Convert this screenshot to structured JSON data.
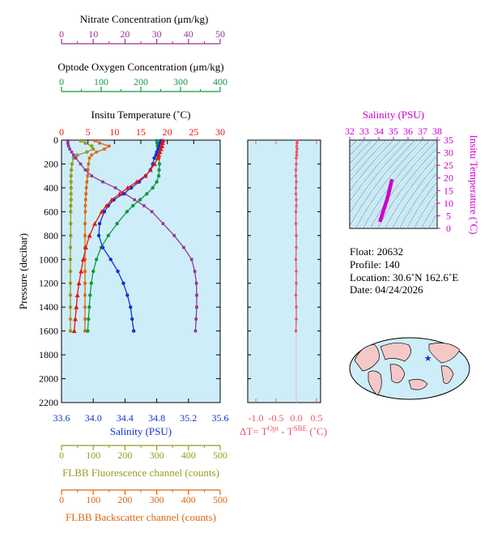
{
  "colors": {
    "nitrate": "#993399",
    "oxygen": "#119944",
    "temperature": "#ee1111",
    "salinity": "#1133cc",
    "fluorescence": "#999922",
    "backscatter": "#dd6611",
    "delta": "#ee5566",
    "ts": "#cc00cc",
    "panel_fill": "#cdeef8"
  },
  "axes": {
    "nitrate": {
      "title": "Nitrate Concentration (μm/kg)",
      "ticks": [
        "0",
        "10",
        "20",
        "30",
        "40",
        "50"
      ]
    },
    "oxygen": {
      "title": "Optode Oxygen Concentration (μm/kg)",
      "ticks": [
        "0",
        "100",
        "200",
        "300",
        "400"
      ]
    },
    "temperature": {
      "title": "Insitu Temperature (˚C)",
      "ticks": [
        "0",
        "5",
        "10",
        "15",
        "20",
        "25",
        "30"
      ]
    },
    "pressure": {
      "title": "Pressure (decibar)",
      "ticks": [
        "0",
        "200",
        "400",
        "600",
        "800",
        "1000",
        "1200",
        "1400",
        "1600",
        "1800",
        "2000",
        "2200"
      ]
    },
    "salinity": {
      "title": "Salinity (PSU)",
      "ticks": [
        "33.6",
        "34.0",
        "34.4",
        "34.8",
        "35.2",
        "35.6"
      ]
    },
    "delta": {
      "title_prefix": "ΔT= T",
      "sup1": "Opt",
      "mid": " - T",
      "sup2": "SBE",
      "suffix": " (˚C)",
      "ticks": [
        "-1.0",
        "-0.5",
        "0.0",
        "0.5"
      ]
    },
    "fluorescence": {
      "title": "FLBB Fluorescence channel (counts)",
      "ticks": [
        "0",
        "100",
        "200",
        "300",
        "400",
        "500"
      ]
    },
    "backscatter": {
      "title": "FLBB Backscatter channel (counts)",
      "ticks": [
        "0",
        "100",
        "200",
        "300",
        "400",
        "500"
      ]
    },
    "ts_salinity": {
      "title": "Salinity (PSU)",
      "ticks": [
        "32",
        "33",
        "34",
        "35",
        "36",
        "37",
        "38"
      ]
    },
    "ts_temperature": {
      "title": "Insitu Temperature (˚C)",
      "ticks": [
        "0",
        "5",
        "10",
        "15",
        "20",
        "25",
        "30",
        "35"
      ]
    }
  },
  "info": {
    "float": "Float:  20632",
    "profile": "Profile:  140",
    "location": "Location:  30.6˚N  162.6˚E",
    "date": "Date:  04/24/2026"
  },
  "chart_data": {
    "type": "line",
    "ylabel": "Pressure (decibar)",
    "ylim": [
      2200,
      0
    ],
    "pressure": [
      5,
      25,
      50,
      75,
      100,
      125,
      150,
      200,
      250,
      300,
      350,
      400,
      450,
      500,
      550,
      600,
      700,
      800,
      900,
      1000,
      1100,
      1200,
      1300,
      1400,
      1500,
      1600
    ],
    "series": [
      {
        "name": "Insitu Temperature (˚C)",
        "xlim": [
          0,
          30
        ],
        "values": [
          19.2,
          19.1,
          19.0,
          18.8,
          18.6,
          18.4,
          18.2,
          17.6,
          16.8,
          15.8,
          14.2,
          12.5,
          11.0,
          9.5,
          8.5,
          7.6,
          6.3,
          5.3,
          4.6,
          4.1,
          3.7,
          3.3,
          3.0,
          2.8,
          2.6,
          2.4
        ]
      },
      {
        "name": "Salinity (PSU)",
        "xlim": [
          33.6,
          35.6
        ],
        "values": [
          34.85,
          34.84,
          34.83,
          34.82,
          34.8,
          34.79,
          34.77,
          34.75,
          34.72,
          34.66,
          34.58,
          34.48,
          34.38,
          34.26,
          34.19,
          34.14,
          34.08,
          34.07,
          34.12,
          34.22,
          34.31,
          34.38,
          34.43,
          34.47,
          34.49,
          34.51
        ]
      },
      {
        "name": "Nitrate Concentration (μm/kg)",
        "xlim": [
          0,
          50
        ],
        "values": [
          2.0,
          2.0,
          2.2,
          2.6,
          3.2,
          3.8,
          4.5,
          6.0,
          7.5,
          9.5,
          13.0,
          17.0,
          20.0,
          23.0,
          26.0,
          28.5,
          32.0,
          35.5,
          38.5,
          41.0,
          42.0,
          42.5,
          42.6,
          42.6,
          42.4,
          42.2
        ]
      },
      {
        "name": "Optode Oxygen Concentration (μm/kg)",
        "xlim": [
          0,
          400
        ],
        "values": [
          240,
          241,
          242,
          243,
          244,
          244,
          245,
          247,
          246,
          245,
          240,
          230,
          215,
          198,
          180,
          165,
          140,
          118,
          100,
          88,
          80,
          75,
          72,
          70,
          68,
          66
        ]
      },
      {
        "name": "FLBB Fluorescence channel (counts)",
        "xlim": [
          0,
          500
        ],
        "values": [
          60,
          75,
          95,
          100,
          80,
          50,
          38,
          33,
          31,
          30,
          30,
          30,
          30,
          30,
          29,
          29,
          29,
          29,
          28,
          28,
          28,
          28,
          28,
          28,
          28,
          28
        ]
      },
      {
        "name": "FLBB Backscatter channel (counts)",
        "xlim": [
          0,
          500
        ],
        "values": [
          105,
          120,
          150,
          135,
          110,
          95,
          88,
          85,
          83,
          82,
          80,
          78,
          77,
          76,
          75,
          75,
          74,
          74,
          74,
          74,
          74,
          74,
          74,
          74,
          74,
          74
        ]
      },
      {
        "name": "ΔT= Tᴼᵖᵗ - Tˢᴮᴱ (˚C)",
        "xlim": [
          -1.2,
          0.6
        ],
        "values": [
          0.02,
          0.02,
          0.01,
          0.02,
          0.01,
          0.01,
          0.0,
          0.0,
          -0.01,
          -0.01,
          0.0,
          -0.01,
          -0.01,
          0.0,
          0.0,
          -0.01,
          -0.01,
          0.0,
          0.0,
          -0.01,
          0.0,
          0.0,
          -0.01,
          0.0,
          0.0,
          -0.01
        ]
      }
    ],
    "ts_diagram": {
      "xlim": [
        32,
        38
      ],
      "ylim": [
        0,
        35
      ],
      "salinity": [
        34.9,
        34.88,
        34.86,
        34.84,
        34.8,
        34.76,
        34.7,
        34.62,
        34.55,
        34.45,
        34.38,
        34.3,
        34.24,
        34.18,
        34.12,
        34.08
      ],
      "temperature": [
        19.5,
        19.0,
        18.5,
        18.0,
        17.0,
        16.0,
        14.5,
        12.8,
        11.2,
        9.5,
        8.2,
        6.8,
        5.6,
        4.5,
        3.6,
        2.6
      ]
    },
    "map": {
      "lat": 30.6,
      "lon": 162.6
    }
  }
}
